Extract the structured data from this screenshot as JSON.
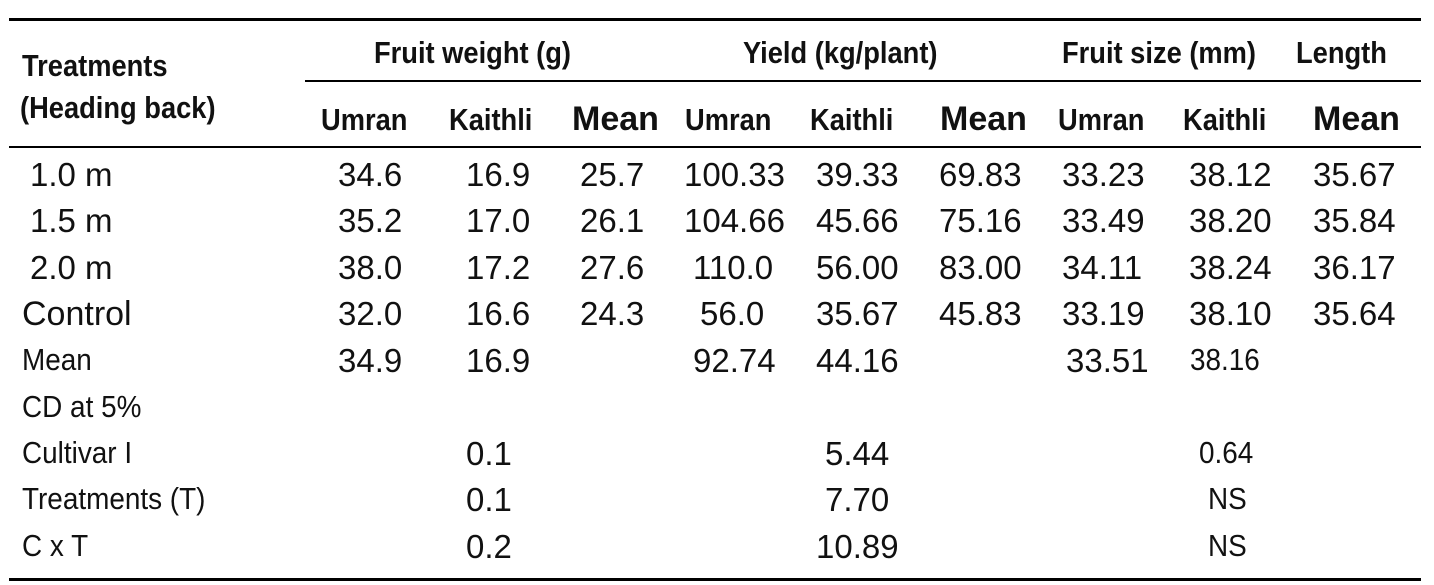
{
  "table": {
    "header": {
      "row_label": [
        "Treatments",
        "(Heading back)"
      ],
      "groups": [
        "Fruit weight (g)",
        "Yield (kg/plant)",
        "Fruit size (mm)",
        "Length"
      ],
      "subheaders": [
        "Umran",
        "Kaithli",
        "Mean",
        "Umran",
        "Kaithli",
        "Mean",
        "Umran",
        "Kaithli",
        "Mean"
      ]
    },
    "rows": [
      {
        "label": "1.0 m",
        "cells": [
          "34.6",
          "16.9",
          "25.7",
          "100.33",
          "39.33",
          "69.83",
          "33.23",
          "38.12",
          "35.67"
        ]
      },
      {
        "label": "1.5 m",
        "cells": [
          "35.2",
          "17.0",
          "26.1",
          "104.66",
          "45.66",
          "75.16",
          "33.49",
          "38.20",
          "35.84"
        ]
      },
      {
        "label": "2.0 m",
        "cells": [
          "38.0",
          "17.2",
          "27.6",
          "110.0",
          "56.00",
          "83.00",
          "34.11",
          "38.24",
          "36.17"
        ]
      },
      {
        "label": "Control",
        "cells": [
          "32.0",
          "16.6",
          "24.3",
          "56.0",
          "35.67",
          "45.83",
          "33.19",
          "38.10",
          "35.64"
        ]
      },
      {
        "label": "Mean",
        "cells": [
          "34.9",
          "16.9",
          "",
          "92.74",
          "44.16",
          "",
          "33.51",
          "38.16",
          ""
        ]
      }
    ],
    "cd_label": "CD at 5%",
    "cd_rows": [
      {
        "label": "Cultivar  I",
        "values": [
          "0.1",
          "5.44",
          "0.64"
        ]
      },
      {
        "label": "Treatments (T)",
        "values": [
          "0.1",
          "7.70",
          "NS"
        ]
      },
      {
        "label": "C x T",
        "values": [
          "0.2",
          "10.89",
          "NS"
        ]
      }
    ]
  }
}
